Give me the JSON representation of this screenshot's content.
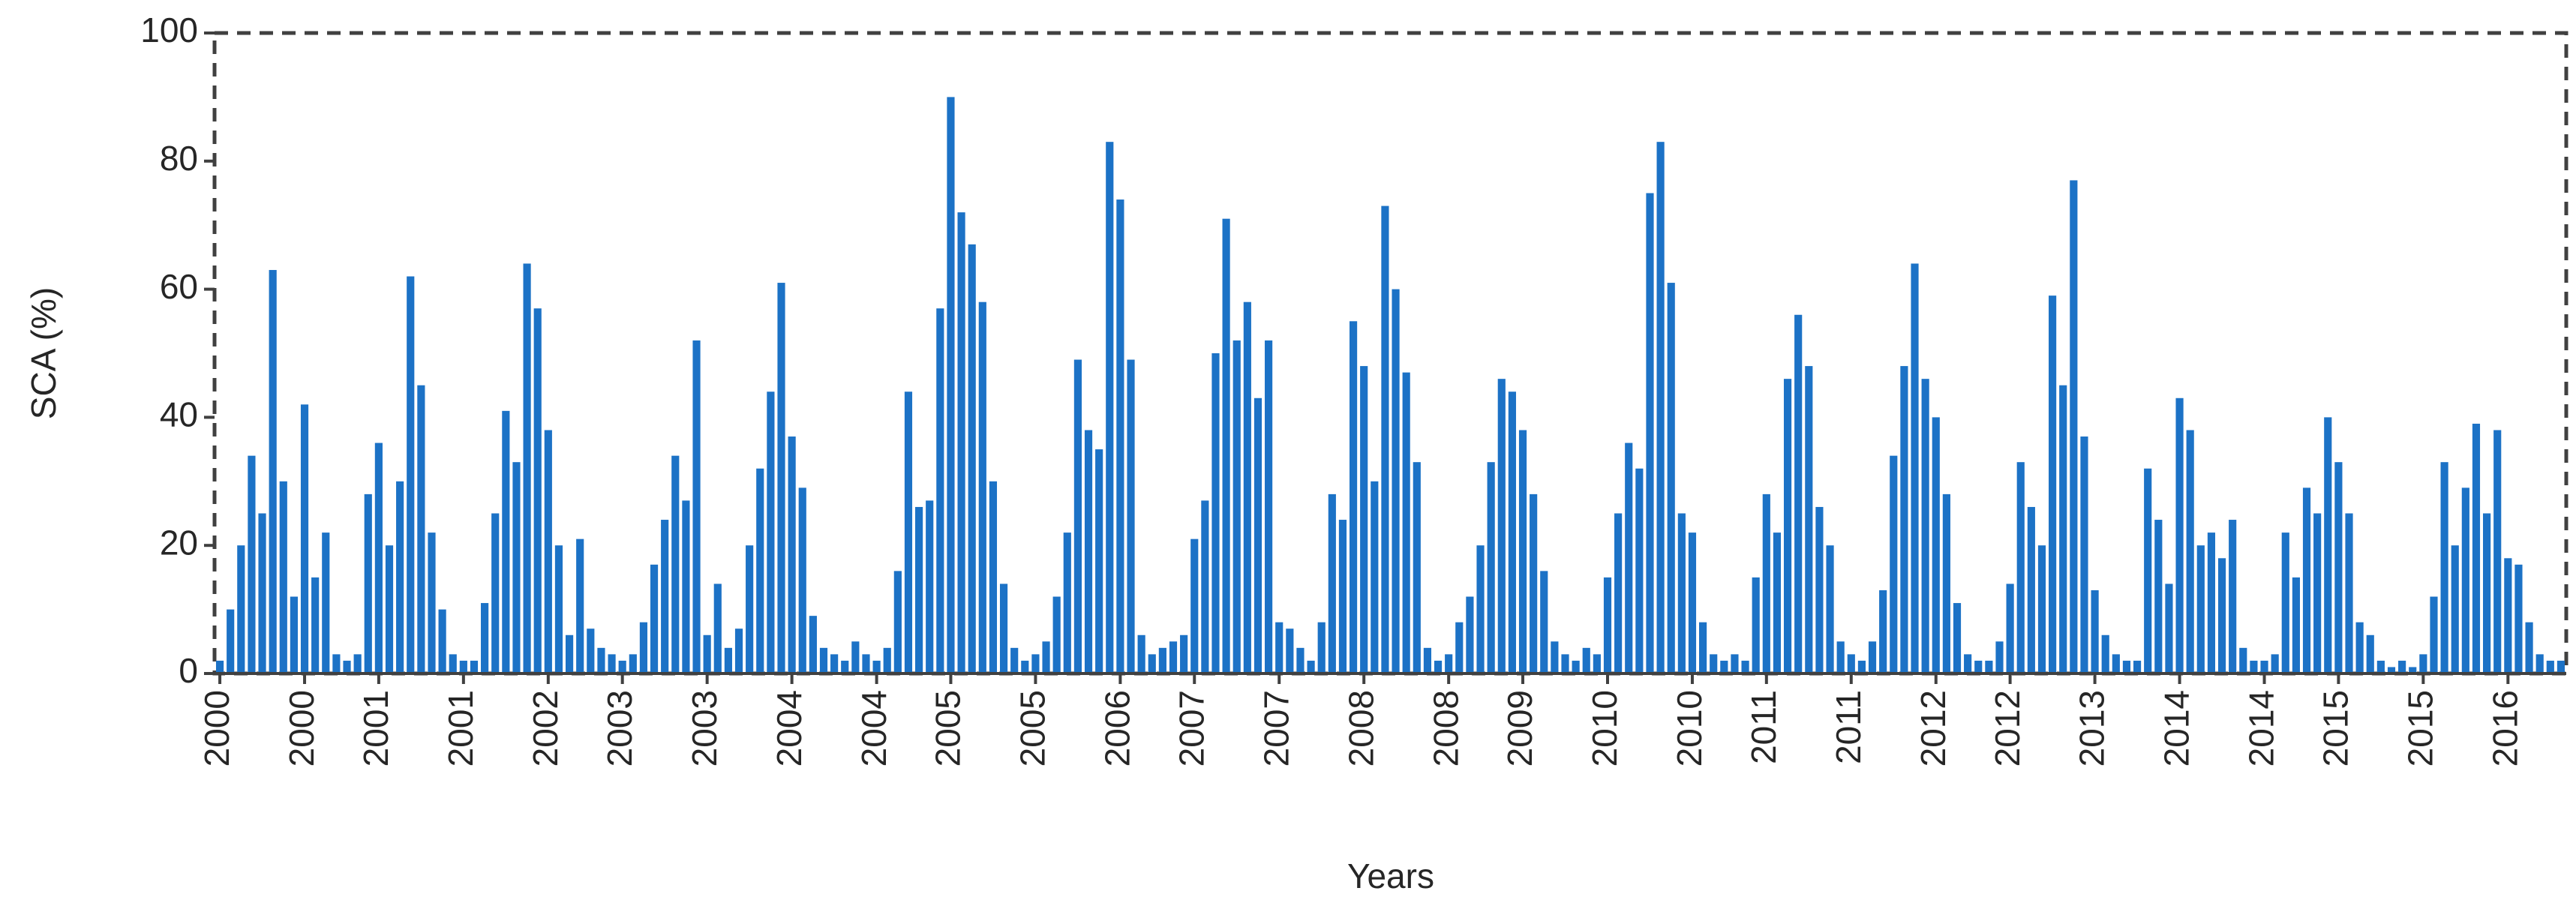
{
  "chart_data": {
    "type": "bar",
    "ylabel": "SCA (%)",
    "xlabel": "Years",
    "color": "#1c72c6",
    "ylim": [
      0,
      100
    ],
    "yticks": [
      0,
      20,
      40,
      60,
      80,
      100
    ],
    "grid": false,
    "categories": [
      "2000",
      null,
      null,
      null,
      null,
      null,
      null,
      null,
      "2000",
      null,
      null,
      null,
      null,
      null,
      null,
      "2001",
      null,
      null,
      null,
      null,
      null,
      null,
      null,
      "2001",
      null,
      null,
      null,
      null,
      null,
      null,
      null,
      "2002",
      null,
      null,
      null,
      null,
      null,
      null,
      "2003",
      null,
      null,
      null,
      null,
      null,
      null,
      null,
      "2003",
      null,
      null,
      null,
      null,
      null,
      null,
      null,
      "2004",
      null,
      null,
      null,
      null,
      null,
      null,
      null,
      "2004",
      null,
      null,
      null,
      null,
      null,
      null,
      "2005",
      null,
      null,
      null,
      null,
      null,
      null,
      null,
      "2005",
      null,
      null,
      null,
      null,
      null,
      null,
      null,
      "2006",
      null,
      null,
      null,
      null,
      null,
      null,
      "2007",
      null,
      null,
      null,
      null,
      null,
      null,
      null,
      "2007",
      null,
      null,
      null,
      null,
      null,
      null,
      null,
      "2008",
      null,
      null,
      null,
      null,
      null,
      null,
      null,
      "2008",
      null,
      null,
      null,
      null,
      null,
      null,
      "2009",
      null,
      null,
      null,
      null,
      null,
      null,
      null,
      "2010",
      null,
      null,
      null,
      null,
      null,
      null,
      null,
      "2010",
      null,
      null,
      null,
      null,
      null,
      null,
      "2011",
      null,
      null,
      null,
      null,
      null,
      null,
      null,
      "2011",
      null,
      null,
      null,
      null,
      null,
      null,
      null,
      "2012",
      null,
      null,
      null,
      null,
      null,
      null,
      "2012",
      null,
      null,
      null,
      null,
      null,
      null,
      null,
      "2013",
      null,
      null,
      null,
      null,
      null,
      null,
      null,
      "2014",
      null,
      null,
      null,
      null,
      null,
      null,
      null,
      "2014",
      null,
      null,
      null,
      null,
      null,
      null,
      "2015",
      null,
      null,
      null,
      null,
      null,
      null,
      null,
      "2015",
      null,
      null,
      null,
      null,
      null,
      null,
      null,
      "2016",
      null,
      null,
      null,
      null,
      null
    ],
    "values": [
      2,
      10,
      20,
      34,
      25,
      63,
      30,
      12,
      42,
      15,
      22,
      3,
      2,
      3,
      28,
      36,
      20,
      30,
      62,
      45,
      22,
      10,
      3,
      2,
      2,
      11,
      25,
      41,
      33,
      64,
      57,
      38,
      20,
      6,
      21,
      7,
      4,
      3,
      2,
      3,
      8,
      17,
      24,
      34,
      27,
      52,
      6,
      14,
      4,
      7,
      20,
      32,
      44,
      61,
      37,
      29,
      9,
      4,
      3,
      2,
      5,
      3,
      2,
      4,
      16,
      44,
      26,
      27,
      57,
      90,
      72,
      67,
      58,
      30,
      14,
      4,
      2,
      3,
      5,
      12,
      22,
      49,
      38,
      35,
      83,
      74,
      49,
      6,
      3,
      4,
      5,
      6,
      21,
      27,
      50,
      71,
      52,
      58,
      43,
      52,
      8,
      7,
      4,
      2,
      8,
      28,
      24,
      55,
      48,
      30,
      73,
      60,
      47,
      33,
      4,
      2,
      3,
      8,
      12,
      20,
      33,
      46,
      44,
      38,
      28,
      16,
      5,
      3,
      2,
      4,
      3,
      15,
      25,
      36,
      32,
      75,
      83,
      61,
      25,
      22,
      8,
      3,
      2,
      3,
      2,
      15,
      28,
      22,
      46,
      56,
      48,
      26,
      20,
      5,
      3,
      2,
      5,
      13,
      34,
      48,
      64,
      46,
      40,
      28,
      11,
      3,
      2,
      2,
      5,
      14,
      33,
      26,
      20,
      59,
      45,
      77,
      37,
      13,
      6,
      3,
      2,
      2,
      32,
      24,
      14,
      43,
      38,
      20,
      22,
      18,
      24,
      4,
      2,
      2,
      3,
      22,
      15,
      29,
      25,
      40,
      33,
      25,
      8,
      6,
      2,
      1,
      2,
      1,
      3,
      12,
      33,
      20,
      29,
      39,
      25,
      38,
      18,
      17,
      8,
      3,
      2,
      2
    ]
  }
}
